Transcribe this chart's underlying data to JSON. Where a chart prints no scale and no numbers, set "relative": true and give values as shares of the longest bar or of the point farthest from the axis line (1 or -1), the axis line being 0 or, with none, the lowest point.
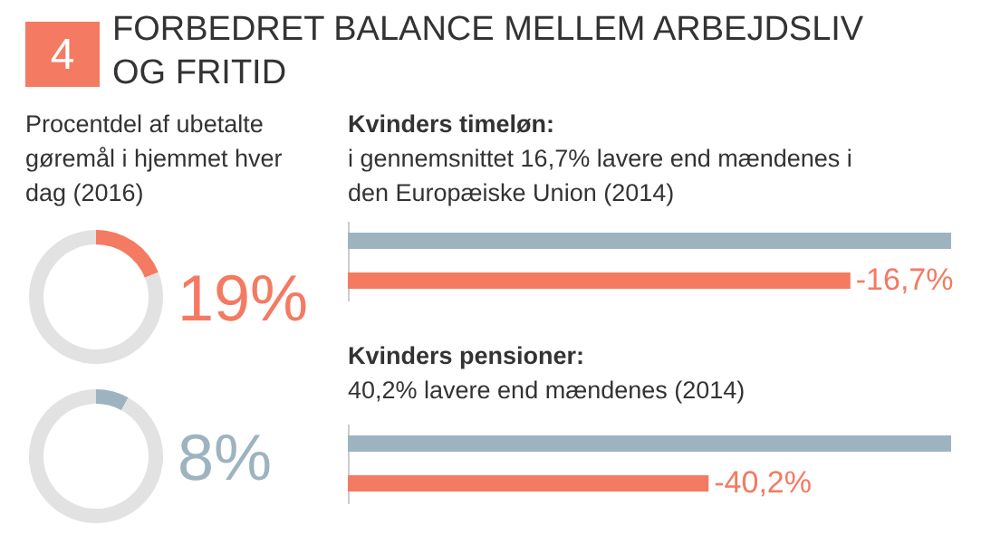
{
  "chart_data": [
    {
      "type": "other",
      "title": "FORBEDRET BALANCE MELLEM ARBEJDSLIV OG FRITID",
      "annotations": [
        "4"
      ],
      "color": "#f47a62"
    },
    {
      "type": "donut",
      "title": "Procentdel af ubetalte gøremål i hjemmet hver dag (2016)",
      "categories": [
        null,
        null
      ],
      "values": [
        19,
        81
      ],
      "colors": [
        "#f47a62",
        "#e2e2e2"
      ],
      "value_labels": [
        "19%",
        null
      ]
    },
    {
      "type": "donut",
      "categories": [
        null,
        null
      ],
      "values": [
        8,
        92
      ],
      "colors": [
        "#9db4c0",
        "#e2e2e2"
      ],
      "annotations": [
        "8%"
      ]
    },
    {
      "type": "bar",
      "orientation": "horizontal",
      "relative": true,
      "title": "Kvinders timeløn:",
      "subtitle": "i gennemsnittet 16,7% lavere end mændenes i den Europæiske Union (2014)",
      "categories": [
        null,
        null
      ],
      "values": [
        1,
        0.833
      ],
      "colors": [
        "#9db4c0",
        "#f47a62"
      ],
      "annotations": [
        {
          "text": "-16,7%",
          "x": 0.833
        }
      ]
    },
    {
      "type": "bar",
      "orientation": "horizontal",
      "relative": true,
      "title": "Kvinders pensioner:",
      "subtitle": "40,2% lavere end mændenes (2014)",
      "categories": [
        null,
        null
      ],
      "values": [
        1,
        0.598
      ],
      "colors": [
        "#9db4c0",
        "#f47a62"
      ],
      "annotations": [
        {
          "text": "-40,2%",
          "x": 0.598
        }
      ]
    }
  ]
}
